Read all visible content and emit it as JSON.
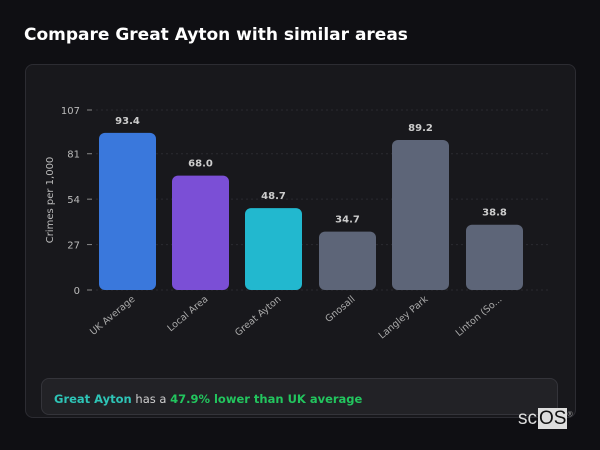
{
  "title": "Compare Great Ayton with similar areas",
  "chart_data": {
    "type": "bar",
    "title": "Compare Great Ayton with similar areas",
    "ylabel": "Crimes per 1,000",
    "xlabel": "",
    "ylim": [
      0,
      107
    ],
    "yticks": [
      0,
      27,
      54,
      81,
      107
    ],
    "categories": [
      "UK Average",
      "Local Area",
      "Great Ayton",
      "Gnosall",
      "Langley Park",
      "Linton (So..."
    ],
    "values": [
      93.4,
      68.0,
      48.7,
      34.7,
      89.2,
      38.8
    ],
    "value_labels": [
      "93.4",
      "68.0",
      "48.7",
      "34.7",
      "89.2",
      "38.8"
    ],
    "colors": [
      "#3a78dc",
      "#7b4fd6",
      "#22b8cf",
      "#5d6578",
      "#5d6578",
      "#5d6578"
    ]
  },
  "summary": {
    "place": "Great Ayton",
    "middle": " has a ",
    "highlight": "47.9% lower than UK average"
  },
  "colors": {
    "place": "#2ec4b6",
    "highlight": "#22c55e"
  },
  "logo": {
    "text1": "sc",
    "text2": "OS",
    "mark": "®"
  }
}
